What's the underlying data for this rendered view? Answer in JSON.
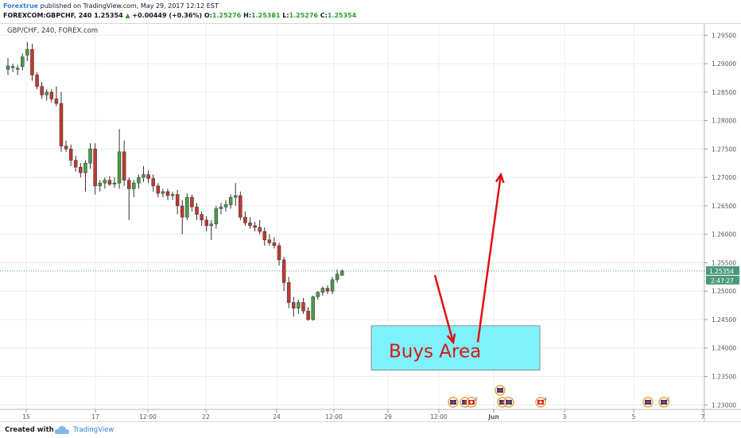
{
  "header": {
    "author": "Forextrue",
    "published": "published on TradingView.com, May 29, 2017 12:12 EST",
    "symbol": "FOREXCOM:GBPCHF, 240",
    "last": "1.25354",
    "change": "+0.00449 (+0.36%)",
    "o_label": "O:",
    "o_value": "1.25276",
    "h_label": "H:",
    "h_value": "1.25381",
    "l_label": "L:",
    "l_value": "1.25276",
    "c_label": "C:",
    "c_value": "1.25354"
  },
  "chart_data": {
    "type": "candlestick",
    "title": "GBP/CHF, 240, FOREX.com",
    "ylim": [
      1.2292,
      1.297
    ],
    "yticks": [
      "1.29500",
      "1.29000",
      "1.28500",
      "1.28000",
      "1.27500",
      "1.27000",
      "1.26500",
      "1.26000",
      "1.25500",
      "1.25000",
      "1.24500",
      "1.24000",
      "1.23500",
      "1.23000"
    ],
    "xticks": [
      "15",
      "17",
      "12:00",
      "22",
      "24",
      "12:00",
      "29",
      "12:00",
      "Jun",
      "3",
      "5",
      "7"
    ],
    "last_price_label": "1.25354",
    "countdown_label": "2:47:27",
    "up_color": "#4a9a4a",
    "down_color": "#c0392b",
    "candles": [
      {
        "o": 1.289,
        "h": 1.291,
        "l": 1.288,
        "c": 1.2896
      },
      {
        "o": 1.2893,
        "h": 1.29,
        "l": 1.2885,
        "c": 1.2895
      },
      {
        "o": 1.289,
        "h": 1.2898,
        "l": 1.288,
        "c": 1.2892
      },
      {
        "o": 1.2895,
        "h": 1.2918,
        "l": 1.2888,
        "c": 1.2912
      },
      {
        "o": 1.2915,
        "h": 1.2938,
        "l": 1.2905,
        "c": 1.2925
      },
      {
        "o": 1.2925,
        "h": 1.2935,
        "l": 1.287,
        "c": 1.288
      },
      {
        "o": 1.288,
        "h": 1.2885,
        "l": 1.2855,
        "c": 1.286
      },
      {
        "o": 1.286,
        "h": 1.2868,
        "l": 1.2838,
        "c": 1.2845
      },
      {
        "o": 1.2845,
        "h": 1.2855,
        "l": 1.2835,
        "c": 1.285
      },
      {
        "o": 1.285,
        "h": 1.2855,
        "l": 1.2832,
        "c": 1.2838
      },
      {
        "o": 1.2838,
        "h": 1.286,
        "l": 1.2825,
        "c": 1.283
      },
      {
        "o": 1.283,
        "h": 1.285,
        "l": 1.2745,
        "c": 1.2755
      },
      {
        "o": 1.2755,
        "h": 1.2765,
        "l": 1.2745,
        "c": 1.275
      },
      {
        "o": 1.275,
        "h": 1.2758,
        "l": 1.272,
        "c": 1.273
      },
      {
        "o": 1.273,
        "h": 1.2738,
        "l": 1.271,
        "c": 1.2718
      },
      {
        "o": 1.2718,
        "h": 1.2725,
        "l": 1.27,
        "c": 1.2708
      },
      {
        "o": 1.2708,
        "h": 1.273,
        "l": 1.2675,
        "c": 1.2725
      },
      {
        "o": 1.2725,
        "h": 1.276,
        "l": 1.2715,
        "c": 1.275
      },
      {
        "o": 1.275,
        "h": 1.276,
        "l": 1.267,
        "c": 1.2685
      },
      {
        "o": 1.2685,
        "h": 1.2695,
        "l": 1.2675,
        "c": 1.269
      },
      {
        "o": 1.269,
        "h": 1.27,
        "l": 1.268,
        "c": 1.2695
      },
      {
        "o": 1.2695,
        "h": 1.2702,
        "l": 1.2685,
        "c": 1.2688
      },
      {
        "o": 1.2688,
        "h": 1.27,
        "l": 1.2682,
        "c": 1.269
      },
      {
        "o": 1.269,
        "h": 1.2785,
        "l": 1.268,
        "c": 1.2745
      },
      {
        "o": 1.2745,
        "h": 1.2765,
        "l": 1.2685,
        "c": 1.2695
      },
      {
        "o": 1.2695,
        "h": 1.27,
        "l": 1.2625,
        "c": 1.268
      },
      {
        "o": 1.268,
        "h": 1.2695,
        "l": 1.2665,
        "c": 1.269
      },
      {
        "o": 1.269,
        "h": 1.2705,
        "l": 1.268,
        "c": 1.27
      },
      {
        "o": 1.27,
        "h": 1.272,
        "l": 1.2692,
        "c": 1.2705
      },
      {
        "o": 1.2705,
        "h": 1.2712,
        "l": 1.269,
        "c": 1.2698
      },
      {
        "o": 1.2698,
        "h": 1.2705,
        "l": 1.2675,
        "c": 1.2685
      },
      {
        "o": 1.2685,
        "h": 1.269,
        "l": 1.2665,
        "c": 1.2672
      },
      {
        "o": 1.2672,
        "h": 1.268,
        "l": 1.2665,
        "c": 1.2675
      },
      {
        "o": 1.2675,
        "h": 1.268,
        "l": 1.266,
        "c": 1.2668
      },
      {
        "o": 1.2668,
        "h": 1.2675,
        "l": 1.266,
        "c": 1.267
      },
      {
        "o": 1.267,
        "h": 1.2678,
        "l": 1.2635,
        "c": 1.265
      },
      {
        "o": 1.265,
        "h": 1.266,
        "l": 1.26,
        "c": 1.263
      },
      {
        "o": 1.263,
        "h": 1.2672,
        "l": 1.2625,
        "c": 1.2665
      },
      {
        "o": 1.2665,
        "h": 1.267,
        "l": 1.264,
        "c": 1.2648
      },
      {
        "o": 1.2648,
        "h": 1.2655,
        "l": 1.2625,
        "c": 1.2635
      },
      {
        "o": 1.2635,
        "h": 1.264,
        "l": 1.2615,
        "c": 1.2625
      },
      {
        "o": 1.2625,
        "h": 1.2632,
        "l": 1.2605,
        "c": 1.2615
      },
      {
        "o": 1.2615,
        "h": 1.2625,
        "l": 1.259,
        "c": 1.2618
      },
      {
        "o": 1.2618,
        "h": 1.265,
        "l": 1.261,
        "c": 1.2645
      },
      {
        "o": 1.2645,
        "h": 1.2655,
        "l": 1.2635,
        "c": 1.2648
      },
      {
        "o": 1.2648,
        "h": 1.266,
        "l": 1.264,
        "c": 1.2652
      },
      {
        "o": 1.2652,
        "h": 1.267,
        "l": 1.2645,
        "c": 1.2665
      },
      {
        "o": 1.2665,
        "h": 1.269,
        "l": 1.265,
        "c": 1.2668
      },
      {
        "o": 1.2668,
        "h": 1.2675,
        "l": 1.2625,
        "c": 1.263
      },
      {
        "o": 1.263,
        "h": 1.264,
        "l": 1.2615,
        "c": 1.262
      },
      {
        "o": 1.262,
        "h": 1.263,
        "l": 1.261,
        "c": 1.2615
      },
      {
        "o": 1.2615,
        "h": 1.2622,
        "l": 1.2605,
        "c": 1.2612
      },
      {
        "o": 1.2612,
        "h": 1.2625,
        "l": 1.26,
        "c": 1.2605
      },
      {
        "o": 1.2605,
        "h": 1.2612,
        "l": 1.258,
        "c": 1.259
      },
      {
        "o": 1.259,
        "h": 1.26,
        "l": 1.258,
        "c": 1.2585
      },
      {
        "o": 1.2585,
        "h": 1.2595,
        "l": 1.2575,
        "c": 1.258
      },
      {
        "o": 1.258,
        "h": 1.2585,
        "l": 1.2545,
        "c": 1.2555
      },
      {
        "o": 1.2555,
        "h": 1.256,
        "l": 1.25,
        "c": 1.2515
      },
      {
        "o": 1.2515,
        "h": 1.2525,
        "l": 1.247,
        "c": 1.248
      },
      {
        "o": 1.248,
        "h": 1.249,
        "l": 1.2455,
        "c": 1.247
      },
      {
        "o": 1.247,
        "h": 1.2485,
        "l": 1.246,
        "c": 1.248
      },
      {
        "o": 1.248,
        "h": 1.2488,
        "l": 1.246,
        "c": 1.2465
      },
      {
        "o": 1.2465,
        "h": 1.2472,
        "l": 1.2448,
        "c": 1.245
      },
      {
        "o": 1.245,
        "h": 1.2492,
        "l": 1.2448,
        "c": 1.249
      },
      {
        "o": 1.249,
        "h": 1.25,
        "l": 1.2485,
        "c": 1.2498
      },
      {
        "o": 1.2498,
        "h": 1.2508,
        "l": 1.2492,
        "c": 1.2505
      },
      {
        "o": 1.2505,
        "h": 1.251,
        "l": 1.2495,
        "c": 1.25
      },
      {
        "o": 1.25,
        "h": 1.2525,
        "l": 1.2495,
        "c": 1.252
      },
      {
        "o": 1.252,
        "h": 1.2538,
        "l": 1.2515,
        "c": 1.253
      },
      {
        "o": 1.25276,
        "h": 1.25381,
        "l": 1.25276,
        "c": 1.25354
      }
    ],
    "annotation": {
      "buys_area_text": "Buys Area",
      "buys_area_price_top": 1.2439,
      "buys_area_price_bottom": 1.2361,
      "box_fill": "#7df2fa",
      "arrow_color": "#e01010",
      "arrow_down_from_price": 1.2528,
      "arrow_down_to_price": 1.241,
      "arrow_up_from_price": 1.241,
      "arrow_up_to_price": 1.2705
    },
    "events": [
      {
        "flag": "uk"
      },
      {
        "flag": "uk"
      },
      {
        "flag": "ch",
        "count": "3"
      },
      {
        "flag": "uk"
      },
      {
        "flag": "uk"
      },
      {
        "flag": "ch",
        "count": "4"
      },
      {
        "flag": "uk"
      },
      {
        "flag": "uk",
        "count": "2"
      },
      {
        "flag": "uk"
      }
    ]
  },
  "footer": {
    "created_with": "Created with",
    "brand": "TradingView"
  }
}
